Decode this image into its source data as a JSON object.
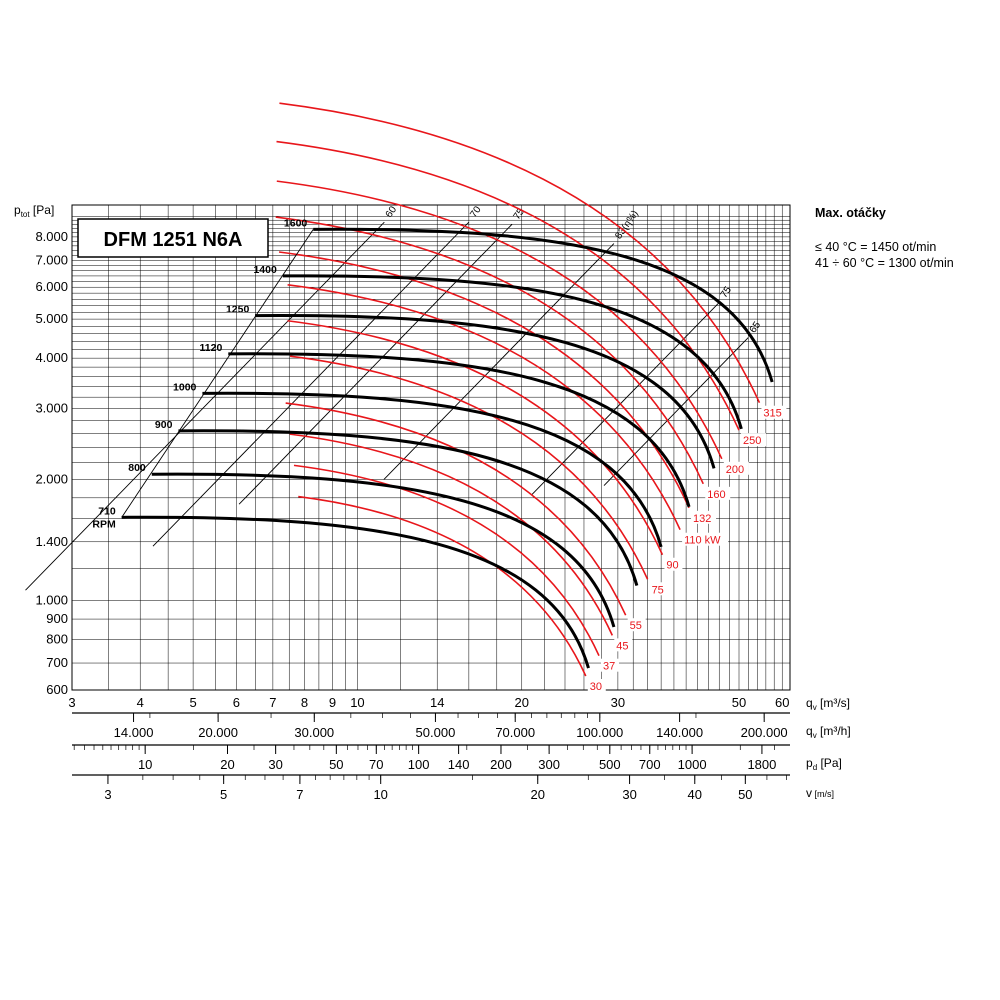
{
  "chart_data": {
    "type": "line",
    "title": "DFM 1251 N6A",
    "ylabel_main": "p",
    "ylabel_sub": "tot",
    "ylabel_unit": "[Pa]",
    "y_log": true,
    "ylim": [
      600,
      9600
    ],
    "y_ticks": [
      {
        "v": 600,
        "label": "600"
      },
      {
        "v": 700,
        "label": "700"
      },
      {
        "v": 800,
        "label": "800"
      },
      {
        "v": 900,
        "label": "900"
      },
      {
        "v": 1000,
        "label": "1.000"
      },
      {
        "v": 1400,
        "label": "1.400"
      },
      {
        "v": 2000,
        "label": "2.000"
      },
      {
        "v": 3000,
        "label": "3.000"
      },
      {
        "v": 4000,
        "label": "4.000"
      },
      {
        "v": 5000,
        "label": "5.000"
      },
      {
        "v": 6000,
        "label": "6.000"
      },
      {
        "v": 7000,
        "label": "7.000"
      },
      {
        "v": 8000,
        "label": "8.000"
      }
    ],
    "x_log": true,
    "xlim": [
      3,
      62
    ],
    "x_ticks": [
      {
        "v": 3,
        "label": "3"
      },
      {
        "v": 4,
        "label": "4"
      },
      {
        "v": 5,
        "label": "5"
      },
      {
        "v": 6,
        "label": "6"
      },
      {
        "v": 7,
        "label": "7"
      },
      {
        "v": 8,
        "label": "8"
      },
      {
        "v": 9,
        "label": "9"
      },
      {
        "v": 10,
        "label": "10"
      },
      {
        "v": 14,
        "label": "14"
      },
      {
        "v": 20,
        "label": "20"
      },
      {
        "v": 30,
        "label": "30"
      },
      {
        "v": 50,
        "label": "50"
      },
      {
        "v": 60,
        "label": "60"
      }
    ],
    "axes": [
      {
        "label_main": "q",
        "label_sub": "v",
        "label_unit": "[m³/s]"
      },
      {
        "label_main": "q",
        "label_sub": "v",
        "label_unit": "[m³/h]",
        "ticks": [
          {
            "v": 14000,
            "label": "14.000"
          },
          {
            "v": 20000,
            "label": "20.000"
          },
          {
            "v": 30000,
            "label": "30.000"
          },
          {
            "v": 50000,
            "label": "50.000"
          },
          {
            "v": 70000,
            "label": "70.000"
          },
          {
            "v": 100000,
            "label": "100.000"
          },
          {
            "v": 140000,
            "label": "140.000"
          },
          {
            "v": 200000,
            "label": "200.000"
          }
        ]
      },
      {
        "label_main": "p",
        "label_sub": "d",
        "label_unit": "[Pa]",
        "ticks": [
          {
            "v": 10,
            "label": "10"
          },
          {
            "v": 20,
            "label": "20"
          },
          {
            "v": 30,
            "label": "30"
          },
          {
            "v": 50,
            "label": "50"
          },
          {
            "v": 70,
            "label": "70"
          },
          {
            "v": 100,
            "label": "100"
          },
          {
            "v": 140,
            "label": "140"
          },
          {
            "v": 200,
            "label": "200"
          },
          {
            "v": 300,
            "label": "300"
          },
          {
            "v": 500,
            "label": "500"
          },
          {
            "v": 700,
            "label": "700"
          },
          {
            "v": 1000,
            "label": "1000"
          },
          {
            "v": 1800,
            "label": "1800"
          }
        ]
      },
      {
        "label_main": "v",
        "label_sub": "",
        "label_unit": "[m/s]",
        "ticks": [
          {
            "v": 3,
            "label": "3"
          },
          {
            "v": 5,
            "label": "5"
          },
          {
            "v": 7,
            "label": "7"
          },
          {
            "v": 10,
            "label": "10"
          },
          {
            "v": 20,
            "label": "20"
          },
          {
            "v": 30,
            "label": "30"
          },
          {
            "v": 40,
            "label": "40"
          },
          {
            "v": 50,
            "label": "50"
          }
        ]
      }
    ],
    "series": [
      {
        "name": "710",
        "sub": "RPM",
        "q_start": 3.7,
        "p_start": 1610,
        "q_end": 26.5,
        "p_end": 680
      },
      {
        "name": "800",
        "q_start": 4.2,
        "p_start": 2060,
        "q_end": 29.5,
        "p_end": 860
      },
      {
        "name": "900",
        "q_start": 4.7,
        "p_start": 2640,
        "q_end": 32.5,
        "p_end": 1090
      },
      {
        "name": "1000",
        "q_start": 5.2,
        "p_start": 3270,
        "q_end": 36.0,
        "p_end": 1360
      },
      {
        "name": "1120",
        "q_start": 5.8,
        "p_start": 4100,
        "q_end": 40.5,
        "p_end": 1710
      },
      {
        "name": "1250",
        "q_start": 6.5,
        "p_start": 5100,
        "q_end": 45.0,
        "p_end": 2130
      },
      {
        "name": "1400",
        "q_start": 7.3,
        "p_start": 6400,
        "q_end": 50.5,
        "p_end": 2670
      },
      {
        "name": "1600",
        "q_start": 8.3,
        "p_start": 8350,
        "q_end": 57.5,
        "p_end": 3490
      }
    ],
    "power_lines": [
      {
        "label": "30",
        "q_end": 26.2,
        "p_end": 650
      },
      {
        "label": "37",
        "q_end": 27.7,
        "p_end": 730
      },
      {
        "label": "45",
        "q_end": 29.3,
        "p_end": 820
      },
      {
        "label": "55",
        "q_end": 31.0,
        "p_end": 920
      },
      {
        "label": "75",
        "q_end": 34.0,
        "p_end": 1130
      },
      {
        "label": "90",
        "q_end": 36.2,
        "p_end": 1300
      },
      {
        "label": "110 kW",
        "q_end": 39.0,
        "p_end": 1500
      },
      {
        "label": "132",
        "q_end": 40.5,
        "p_end": 1700
      },
      {
        "label": "160",
        "q_end": 43.0,
        "p_end": 1950
      },
      {
        "label": "200",
        "q_end": 46.5,
        "p_end": 2250
      },
      {
        "label": "250",
        "q_end": 50.0,
        "p_end": 2650
      },
      {
        "label": "315",
        "q_end": 54.5,
        "p_end": 3100
      }
    ],
    "efficiency_lines": [
      {
        "label": "60",
        "q_top": 11.2,
        "p_top": 8700
      },
      {
        "label": "70",
        "q_top": 16.0,
        "p_top": 8700
      },
      {
        "label": "75",
        "q_top": 19.2,
        "p_top": 8600
      },
      {
        "label": "83(η%)",
        "q_top": 29.5,
        "p_top": 7700
      },
      {
        "label": "75",
        "q_top": 46.0,
        "p_top": 5500
      },
      {
        "label": "65",
        "q_top": 52.0,
        "p_top": 4500
      }
    ]
  },
  "side": {
    "title": "Max. otáčky",
    "line1": "≤ 40 °C = 1450 ot/min",
    "line2": "41 ÷ 60 °C = 1300 ot/min"
  }
}
